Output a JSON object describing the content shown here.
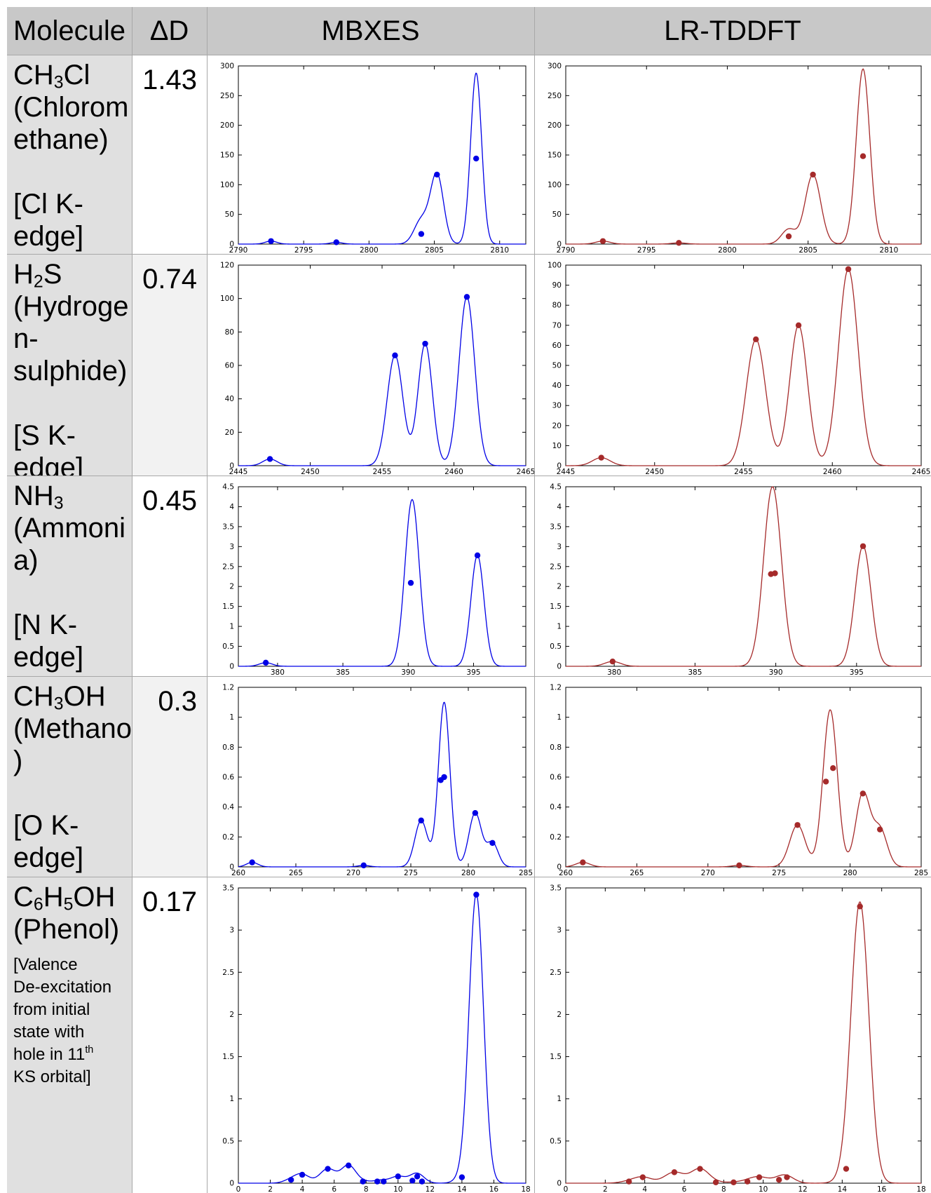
{
  "header": {
    "molecule": "Molecule",
    "delta": "ΔD",
    "mbxes": "MBXES",
    "lrtddft": "LR-TDDFT"
  },
  "colors": {
    "mbxes": "#0000e6",
    "lrtddft": "#a52a2a",
    "header_bg": "#c8c8c8",
    "molecule_bg": "#e0e0e0"
  },
  "rows": [
    {
      "formula": [
        "CH",
        "3",
        "Cl"
      ],
      "name_lines": [
        "(Chlorom",
        "ethane)"
      ],
      "edge_lines": [
        "[Cl K-",
        "edge]"
      ],
      "delta": "1.43"
    },
    {
      "formula": [
        "H",
        "2",
        "S"
      ],
      "name_lines": [
        "(Hydroge",
        "n-",
        "sulphide)"
      ],
      "edge_lines": [
        "[S K-",
        "edge]"
      ],
      "delta": "0.74"
    },
    {
      "formula": [
        "NH",
        "3",
        ""
      ],
      "name_lines": [
        "(Ammoni",
        "a)"
      ],
      "edge_lines": [
        "[N K-",
        "edge]"
      ],
      "delta": "0.45"
    },
    {
      "formula": [
        "CH",
        "3",
        "OH"
      ],
      "name_lines": [
        "(Methanol",
        ")"
      ],
      "edge_lines": [
        "[O K-",
        "edge]"
      ],
      "delta": "0.3"
    },
    {
      "formula": [
        "C",
        "6",
        "H",
        "5",
        "OH"
      ],
      "name_lines": [
        "(Phenol)"
      ],
      "edge_small": [
        "[Valence",
        "De-excitation",
        "from initial",
        "state with",
        "hole in 11",
        "th",
        "KS orbital]"
      ],
      "delta": "0.17"
    }
  ],
  "chart_data": [
    {
      "type": "line",
      "method": "MBXES",
      "molecule": "CH3Cl",
      "xlim": [
        2790,
        2812
      ],
      "ylim": [
        0,
        300
      ],
      "xticks": [
        2790,
        2795,
        2800,
        2805,
        2810
      ],
      "yticks": [
        0,
        50,
        100,
        150,
        200,
        250,
        300
      ],
      "points": [
        [
          2792.5,
          5
        ],
        [
          2797.5,
          3
        ],
        [
          2804,
          17
        ],
        [
          2805.2,
          117
        ],
        [
          2808.2,
          144
        ]
      ],
      "curve_peaks": [
        [
          2792.5,
          5,
          0.45
        ],
        [
          2797.5,
          3,
          0.45
        ],
        [
          2804.0,
          40,
          0.55
        ],
        [
          2805.2,
          117,
          0.5
        ],
        [
          2808.2,
          288,
          0.42
        ]
      ]
    },
    {
      "type": "line",
      "method": "LR-TDDFT",
      "molecule": "CH3Cl",
      "xlim": [
        2790,
        2812
      ],
      "ylim": [
        0,
        300
      ],
      "xticks": [
        2790,
        2795,
        2800,
        2805,
        2810
      ],
      "yticks": [
        0,
        50,
        100,
        150,
        200,
        250,
        300
      ],
      "points": [
        [
          2792.3,
          5
        ],
        [
          2797.0,
          2
        ],
        [
          2803.8,
          13
        ],
        [
          2805.3,
          117
        ],
        [
          2808.4,
          148
        ]
      ],
      "curve_peaks": [
        [
          2792.3,
          5,
          0.45
        ],
        [
          2797.0,
          2,
          0.45
        ],
        [
          2803.8,
          25,
          0.45
        ],
        [
          2805.3,
          117,
          0.48
        ],
        [
          2808.4,
          295,
          0.42
        ]
      ]
    },
    {
      "type": "line",
      "method": "MBXES",
      "molecule": "H2S",
      "xlim": [
        2445,
        2465
      ],
      "ylim": [
        0,
        120
      ],
      "xticks": [
        2445,
        2450,
        2455,
        2460,
        2465
      ],
      "yticks": [
        0,
        20,
        40,
        60,
        80,
        100,
        120
      ],
      "points": [
        [
          2447.2,
          4
        ],
        [
          2455.9,
          66
        ],
        [
          2458.0,
          73
        ],
        [
          2460.9,
          101
        ]
      ],
      "curve_peaks": [
        [
          2447.2,
          4,
          0.5
        ],
        [
          2455.9,
          66,
          0.55
        ],
        [
          2458.0,
          73,
          0.5
        ],
        [
          2460.9,
          101,
          0.55
        ]
      ]
    },
    {
      "type": "line",
      "method": "LR-TDDFT",
      "molecule": "H2S",
      "xlim": [
        2445,
        2465
      ],
      "ylim": [
        0,
        100
      ],
      "xticks": [
        2445,
        2450,
        2455,
        2460,
        2465
      ],
      "yticks": [
        0,
        10,
        20,
        30,
        40,
        50,
        60,
        70,
        80,
        90,
        100
      ],
      "points": [
        [
          2447.0,
          4
        ],
        [
          2455.7,
          63
        ],
        [
          2458.1,
          70
        ],
        [
          2460.9,
          98
        ]
      ],
      "curve_peaks": [
        [
          2447.0,
          4,
          0.5
        ],
        [
          2455.7,
          63,
          0.55
        ],
        [
          2458.1,
          70,
          0.5
        ],
        [
          2460.9,
          98,
          0.55
        ]
      ]
    },
    {
      "type": "line",
      "method": "MBXES",
      "molecule": "NH3",
      "xlim": [
        377,
        399
      ],
      "ylim": [
        0,
        4.5
      ],
      "xticks": [
        380,
        385,
        390,
        395
      ],
      "yticks": [
        0,
        0.5,
        1,
        1.5,
        2,
        2.5,
        3,
        3.5,
        4,
        4.5
      ],
      "points": [
        [
          379.1,
          0.09
        ],
        [
          390.2,
          2.09
        ],
        [
          395.3,
          2.78
        ]
      ],
      "curve_peaks": [
        [
          379.1,
          0.09,
          0.5
        ],
        [
          390.3,
          4.18,
          0.55
        ],
        [
          395.3,
          2.78,
          0.5
        ]
      ]
    },
    {
      "type": "line",
      "method": "LR-TDDFT",
      "molecule": "NH3",
      "xlim": [
        377,
        399
      ],
      "ylim": [
        0,
        4.5
      ],
      "xticks": [
        380,
        385,
        390,
        395
      ],
      "yticks": [
        0,
        0.5,
        1,
        1.5,
        2,
        2.5,
        3,
        3.5,
        4,
        4.5
      ],
      "points": [
        [
          379.9,
          0.12
        ],
        [
          389.7,
          2.31
        ],
        [
          389.95,
          2.33
        ],
        [
          395.4,
          3.01
        ]
      ],
      "curve_peaks": [
        [
          379.9,
          0.12,
          0.5
        ],
        [
          389.8,
          4.5,
          0.55
        ],
        [
          395.4,
          3.02,
          0.5
        ]
      ]
    },
    {
      "type": "line",
      "method": "MBXES",
      "molecule": "CH3OH",
      "xlim": [
        260,
        285
      ],
      "ylim": [
        0,
        1.2
      ],
      "xticks": [
        260,
        265,
        270,
        275,
        280,
        285
      ],
      "yticks": [
        0,
        0.2,
        0.4,
        0.6,
        0.8,
        1,
        1.2
      ],
      "points": [
        [
          261.2,
          0.03
        ],
        [
          270.9,
          0.01
        ],
        [
          275.9,
          0.31
        ],
        [
          277.6,
          0.58
        ],
        [
          277.9,
          0.6
        ],
        [
          280.6,
          0.36
        ],
        [
          282.1,
          0.16
        ]
      ],
      "curve_peaks": [
        [
          261.2,
          0.03,
          0.5
        ],
        [
          270.9,
          0.01,
          0.5
        ],
        [
          275.9,
          0.31,
          0.55
        ],
        [
          277.9,
          1.1,
          0.5
        ],
        [
          280.6,
          0.36,
          0.55
        ],
        [
          282.1,
          0.16,
          0.5
        ]
      ]
    },
    {
      "type": "line",
      "method": "LR-TDDFT",
      "molecule": "CH3OH",
      "xlim": [
        260,
        285
      ],
      "ylim": [
        0,
        1.2
      ],
      "xticks": [
        260,
        265,
        270,
        275,
        280,
        285
      ],
      "yticks": [
        0,
        0.2,
        0.4,
        0.6,
        0.8,
        1,
        1.2
      ],
      "points": [
        [
          261.2,
          0.03
        ],
        [
          272.2,
          0.01
        ],
        [
          276.3,
          0.28
        ],
        [
          278.3,
          0.57
        ],
        [
          278.8,
          0.66
        ],
        [
          280.9,
          0.49
        ],
        [
          282.1,
          0.25
        ]
      ],
      "curve_peaks": [
        [
          261.2,
          0.03,
          0.5
        ],
        [
          272.2,
          0.01,
          0.5
        ],
        [
          276.3,
          0.28,
          0.55
        ],
        [
          278.6,
          1.05,
          0.5
        ],
        [
          280.9,
          0.49,
          0.5
        ],
        [
          282.1,
          0.25,
          0.5
        ]
      ]
    },
    {
      "type": "line",
      "method": "MBXES",
      "molecule": "C6H5OH",
      "xlim": [
        0,
        18
      ],
      "ylim": [
        0,
        3.5
      ],
      "xticks": [
        0,
        2,
        4,
        6,
        8,
        10,
        12,
        14,
        16,
        18
      ],
      "yticks": [
        0,
        0.5,
        1,
        1.5,
        2,
        2.5,
        3,
        3.5
      ],
      "points": [
        [
          3.3,
          0.04
        ],
        [
          4,
          0.1
        ],
        [
          5.6,
          0.17
        ],
        [
          6.9,
          0.21
        ],
        [
          7.8,
          0.02
        ],
        [
          8.7,
          0.02
        ],
        [
          9.1,
          0.02
        ],
        [
          10,
          0.08
        ],
        [
          10.9,
          0.03
        ],
        [
          11.2,
          0.08
        ],
        [
          11.5,
          0.02
        ],
        [
          14,
          0.07
        ],
        [
          14.9,
          3.42
        ]
      ],
      "curve_peaks": [
        [
          3.3,
          0.04,
          0.45
        ],
        [
          4,
          0.1,
          0.45
        ],
        [
          5.6,
          0.17,
          0.5
        ],
        [
          6.9,
          0.21,
          0.45
        ],
        [
          7.8,
          0.02,
          0.4
        ],
        [
          8.7,
          0.02,
          0.4
        ],
        [
          9.1,
          0.02,
          0.4
        ],
        [
          10,
          0.08,
          0.45
        ],
        [
          10.9,
          0.03,
          0.4
        ],
        [
          11.2,
          0.08,
          0.4
        ],
        [
          11.5,
          0.02,
          0.4
        ],
        [
          14,
          0.05,
          0.45
        ],
        [
          14.9,
          3.42,
          0.45
        ]
      ]
    },
    {
      "type": "line",
      "method": "LR-TDDFT",
      "molecule": "C6H5OH",
      "xlim": [
        0,
        18
      ],
      "ylim": [
        0,
        3.5
      ],
      "xticks": [
        0,
        2,
        4,
        6,
        8,
        10,
        12,
        14,
        16,
        18
      ],
      "yticks": [
        0,
        0.5,
        1,
        1.5,
        2,
        2.5,
        3,
        3.5
      ],
      "points": [
        [
          3.2,
          0.02
        ],
        [
          3.9,
          0.07
        ],
        [
          5.5,
          0.13
        ],
        [
          6.8,
          0.17
        ],
        [
          7.6,
          0.01
        ],
        [
          8.5,
          0.01
        ],
        [
          9.2,
          0.02
        ],
        [
          9.8,
          0.07
        ],
        [
          10.8,
          0.04
        ],
        [
          11.2,
          0.07
        ],
        [
          14.2,
          0.17
        ],
        [
          14.9,
          3.28
        ]
      ],
      "curve_peaks": [
        [
          3.2,
          0.02,
          0.45
        ],
        [
          3.9,
          0.07,
          0.45
        ],
        [
          5.5,
          0.13,
          0.5
        ],
        [
          6.8,
          0.17,
          0.45
        ],
        [
          7.6,
          0.01,
          0.4
        ],
        [
          8.5,
          0.01,
          0.4
        ],
        [
          9.2,
          0.02,
          0.4
        ],
        [
          9.8,
          0.07,
          0.45
        ],
        [
          10.8,
          0.04,
          0.4
        ],
        [
          11.2,
          0.07,
          0.4
        ],
        [
          14.2,
          0.05,
          0.45
        ],
        [
          14.9,
          3.32,
          0.45
        ]
      ]
    }
  ]
}
